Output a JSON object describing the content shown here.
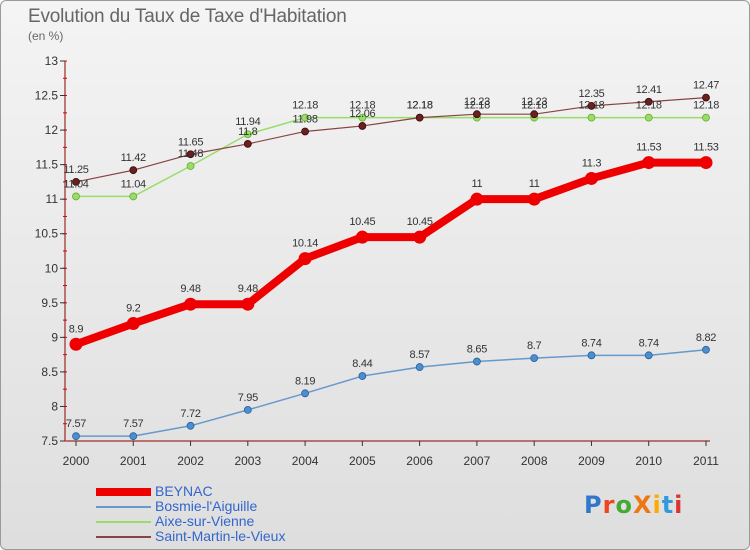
{
  "title": "Evolution du Taux de Taxe d'Habitation",
  "subtitle": "(en %)",
  "logo": {
    "text": "ProXiti"
  },
  "chart_data": {
    "type": "line",
    "x": [
      "2000",
      "2001",
      "2002",
      "2003",
      "2004",
      "2005",
      "2006",
      "2007",
      "2008",
      "2009",
      "2010",
      "2011"
    ],
    "ylim": [
      7.5,
      13
    ],
    "yticks": [
      "7.5",
      "8",
      "8.5",
      "9",
      "9.5",
      "10",
      "10.5",
      "11",
      "11.5",
      "12",
      "12.5",
      "13"
    ],
    "grid": false,
    "legend_position": "bottom-left",
    "series": [
      {
        "name": "BEYNAC",
        "color": "#ee0000",
        "values": [
          8.9,
          9.2,
          9.48,
          9.48,
          10.14,
          10.45,
          10.45,
          11,
          11,
          11.3,
          11.53,
          11.53
        ],
        "labels": [
          "8.9",
          "9.2",
          "9.48",
          "9.48",
          "10.14",
          "10.45",
          "10.45",
          "11",
          "11",
          "11.3",
          "11.53",
          "11.53"
        ]
      },
      {
        "name": "Bosmie-l'Aiguille",
        "color": "#6699cc",
        "values": [
          7.57,
          7.57,
          7.72,
          7.95,
          8.19,
          8.44,
          8.57,
          8.65,
          8.7,
          8.74,
          8.74,
          8.82
        ],
        "labels": [
          "7.57",
          "7.57",
          "7.72",
          "7.95",
          "8.19",
          "8.44",
          "8.57",
          "8.65",
          "8.7",
          "8.74",
          "8.74",
          "8.82"
        ]
      },
      {
        "name": "Aixe-sur-Vienne",
        "color": "#99dd66",
        "values": [
          11.04,
          11.04,
          11.48,
          11.94,
          12.18,
          12.18,
          12.18,
          12.18,
          12.18,
          12.18,
          12.18,
          12.18
        ],
        "labels": [
          "11.04",
          "11.04",
          "11.48",
          "11.94",
          "12.18",
          "12.18",
          "12.18",
          "12.18",
          "12.18",
          "12.18",
          "12.18",
          "12.18"
        ]
      },
      {
        "name": "Saint-Martin-le-Vieux",
        "color": "#884444",
        "values": [
          11.25,
          11.42,
          11.65,
          11.8,
          11.98,
          12.06,
          12.18,
          12.23,
          12.23,
          12.35,
          12.41,
          12.47
        ],
        "labels": [
          "11.25",
          "11.42",
          "11.65",
          "11.8",
          "11.98",
          "12.06",
          "12.18",
          "12.23",
          "12.23",
          "12.35",
          "12.41",
          "12.47"
        ]
      }
    ]
  }
}
